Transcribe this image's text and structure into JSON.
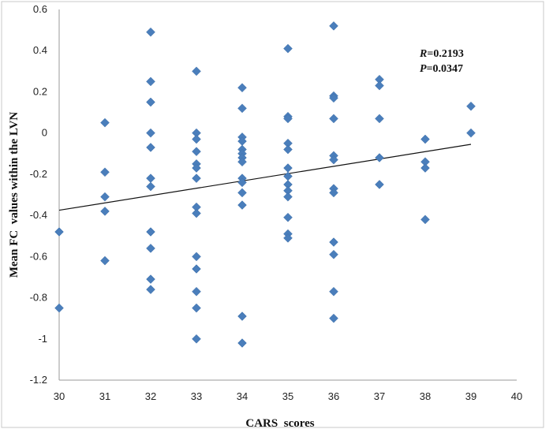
{
  "chart_data": {
    "type": "scatter",
    "xlabel": "CARS  scores",
    "ylabel": "Mean FC  values within the LVN",
    "xlim": [
      30,
      40
    ],
    "ylim": [
      -1.2,
      0.6
    ],
    "xticks": [
      30,
      31,
      32,
      33,
      34,
      35,
      36,
      37,
      38,
      39,
      40
    ],
    "yticks": [
      0.6,
      0.4,
      0.2,
      0,
      -0.2,
      -0.4,
      -0.6,
      -0.8,
      -1,
      -1.2
    ],
    "ytick_labels": [
      "0.6",
      "0.4",
      "0.2",
      "0",
      "-0.2",
      "-0.4",
      "-0.6",
      "-0.8",
      "-1",
      "-1.2"
    ],
    "annotation": {
      "r_label": "R",
      "r_value": "=0.2193",
      "p_label": "P",
      "p_value": "=0.0347"
    },
    "series": [
      {
        "marker": "diamond",
        "color": "#4a7ebb",
        "points": [
          [
            30,
            -0.48
          ],
          [
            30,
            -0.85
          ],
          [
            31,
            0.05
          ],
          [
            31,
            -0.19
          ],
          [
            31,
            -0.31
          ],
          [
            31,
            -0.38
          ],
          [
            31,
            -0.62
          ],
          [
            32,
            0.49
          ],
          [
            32,
            0.25
          ],
          [
            32,
            0.15
          ],
          [
            32,
            0.0
          ],
          [
            32,
            -0.07
          ],
          [
            32,
            -0.22
          ],
          [
            32,
            -0.26
          ],
          [
            32,
            -0.48
          ],
          [
            32,
            -0.56
          ],
          [
            32,
            -0.71
          ],
          [
            32,
            -0.76
          ],
          [
            33,
            0.3
          ],
          [
            33,
            0.0
          ],
          [
            33,
            -0.03
          ],
          [
            33,
            -0.09
          ],
          [
            33,
            -0.15
          ],
          [
            33,
            -0.17
          ],
          [
            33,
            -0.22
          ],
          [
            33,
            -0.36
          ],
          [
            33,
            -0.39
          ],
          [
            33,
            -0.6
          ],
          [
            33,
            -0.66
          ],
          [
            33,
            -0.77
          ],
          [
            33,
            -0.85
          ],
          [
            33,
            -1.0
          ],
          [
            34,
            0.22
          ],
          [
            34,
            0.12
          ],
          [
            34,
            -0.02
          ],
          [
            34,
            -0.04
          ],
          [
            34,
            -0.08
          ],
          [
            34,
            -0.1
          ],
          [
            34,
            -0.12
          ],
          [
            34,
            -0.14
          ],
          [
            34,
            -0.22
          ],
          [
            34,
            -0.24
          ],
          [
            34,
            -0.29
          ],
          [
            34,
            -0.35
          ],
          [
            34,
            -0.89
          ],
          [
            34,
            -1.02
          ],
          [
            35,
            0.41
          ],
          [
            35,
            0.08
          ],
          [
            35,
            0.07
          ],
          [
            35,
            -0.05
          ],
          [
            35,
            -0.08
          ],
          [
            35,
            -0.17
          ],
          [
            35,
            -0.21
          ],
          [
            35,
            -0.25
          ],
          [
            35,
            -0.28
          ],
          [
            35,
            -0.31
          ],
          [
            35,
            -0.41
          ],
          [
            35,
            -0.49
          ],
          [
            35,
            -0.51
          ],
          [
            36,
            0.52
          ],
          [
            36,
            0.18
          ],
          [
            36,
            0.17
          ],
          [
            36,
            0.07
          ],
          [
            36,
            -0.11
          ],
          [
            36,
            -0.13
          ],
          [
            36,
            -0.27
          ],
          [
            36,
            -0.29
          ],
          [
            36,
            -0.53
          ],
          [
            36,
            -0.59
          ],
          [
            36,
            -0.77
          ],
          [
            36,
            -0.9
          ],
          [
            37,
            0.26
          ],
          [
            37,
            0.23
          ],
          [
            37,
            0.07
          ],
          [
            37,
            -0.12
          ],
          [
            37,
            -0.25
          ],
          [
            38,
            -0.03
          ],
          [
            38,
            -0.14
          ],
          [
            38,
            -0.17
          ],
          [
            38,
            -0.42
          ],
          [
            39,
            0.13
          ],
          [
            39,
            0.0
          ]
        ]
      }
    ],
    "trendline": {
      "x": [
        30,
        39
      ],
      "y": [
        -0.375,
        -0.055
      ]
    },
    "grid": false
  }
}
